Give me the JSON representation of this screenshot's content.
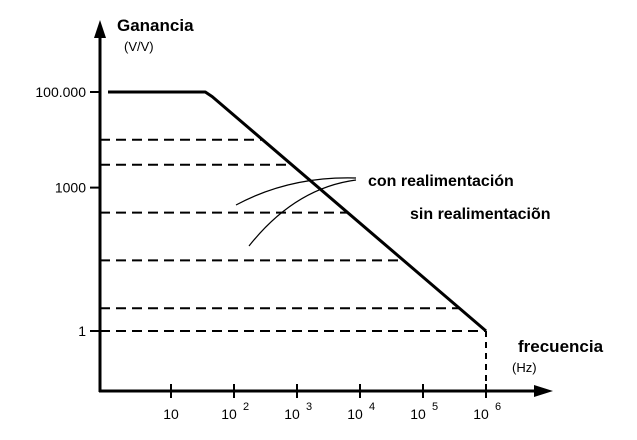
{
  "chart_data": {
    "type": "line",
    "ylabel": "Ganancia",
    "yunit": "(V/V)",
    "xlabel": "frecuencia",
    "xunit": "(Hz)",
    "xscale": "log",
    "yscale": "log",
    "x_ticks": [
      {
        "value": 10,
        "base": "10",
        "exp": ""
      },
      {
        "value": 100,
        "base": "10",
        "exp": "2"
      },
      {
        "value": 1000,
        "base": "10",
        "exp": "3"
      },
      {
        "value": 10000,
        "base": "10",
        "exp": "4"
      },
      {
        "value": 100000,
        "base": "10",
        "exp": "5"
      },
      {
        "value": 1000000,
        "base": "10",
        "exp": "6"
      }
    ],
    "y_ticks": [
      {
        "value": 1,
        "label": "1"
      },
      {
        "value": 1000,
        "label": "1000"
      },
      {
        "value": 100000,
        "label": "100.000"
      }
    ],
    "series": [
      {
        "name": "sin realimentación",
        "x": [
          1,
          35,
          45,
          1000000
        ],
        "y": [
          100000,
          100000,
          80000,
          1
        ]
      }
    ],
    "closed_loop_levels": [
      10000,
      3000,
      300,
      30,
      3,
      1
    ],
    "annotations": [
      {
        "text": "con realimentación"
      },
      {
        "text": "sin realimentaciõn"
      }
    ]
  }
}
